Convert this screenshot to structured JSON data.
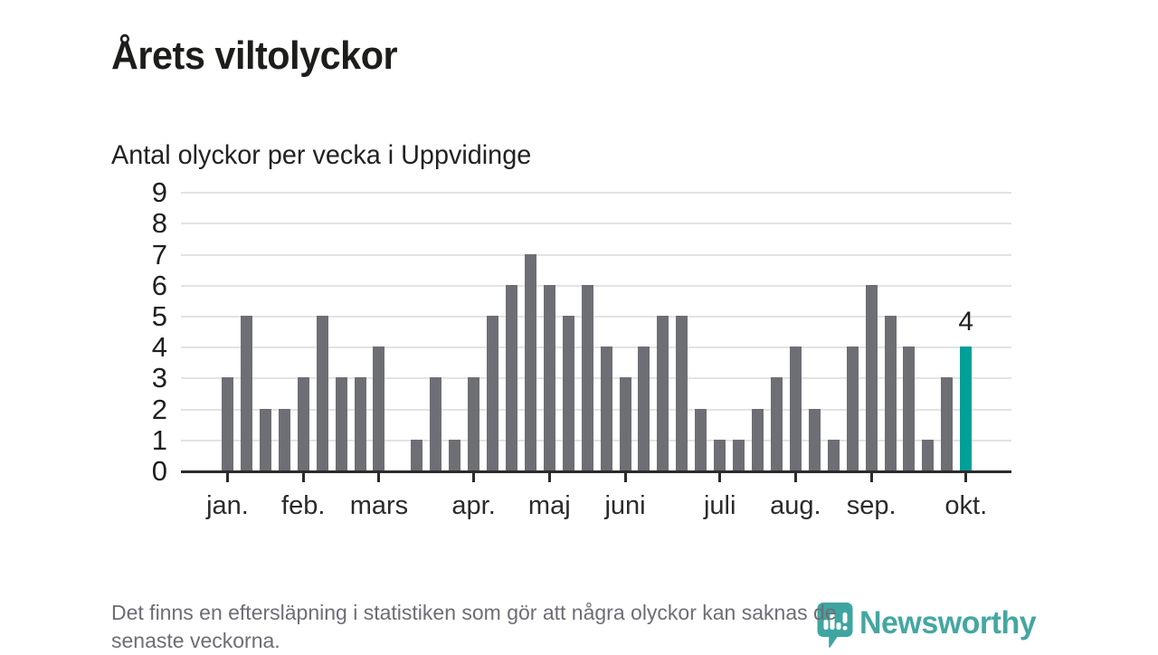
{
  "header": {
    "title": "Årets viltolyckor",
    "subtitle": "Antal olyckor per vecka i Uppvidinge"
  },
  "chart_data": {
    "type": "bar",
    "title": "Årets viltolyckor",
    "subtitle": "Antal olyckor per vecka i Uppvidinge",
    "x_unit": "vecka",
    "values": [
      3,
      5,
      2,
      2,
      3,
      5,
      3,
      3,
      4,
      0,
      1,
      3,
      1,
      3,
      5,
      6,
      7,
      6,
      5,
      6,
      4,
      3,
      4,
      5,
      5,
      2,
      1,
      1,
      2,
      3,
      4,
      2,
      1,
      4,
      6,
      5,
      4,
      1,
      3,
      4
    ],
    "highlight_index": 39,
    "highlight_value_label": "4",
    "months": [
      {
        "label": "jan.",
        "bar_index": 0
      },
      {
        "label": "feb.",
        "bar_index": 4
      },
      {
        "label": "mars",
        "bar_index": 8
      },
      {
        "label": "apr.",
        "bar_index": 13
      },
      {
        "label": "maj",
        "bar_index": 17
      },
      {
        "label": "juni",
        "bar_index": 21
      },
      {
        "label": "juli",
        "bar_index": 26
      },
      {
        "label": "aug.",
        "bar_index": 30
      },
      {
        "label": "sep.",
        "bar_index": 34
      },
      {
        "label": "okt.",
        "bar_index": 39
      }
    ],
    "ylim": [
      0,
      9
    ],
    "yticks": [
      0,
      1,
      2,
      3,
      4,
      5,
      6,
      7,
      8,
      9
    ],
    "grid": true,
    "legend": null,
    "colors": {
      "bar": "#6e6e75",
      "highlight": "#00a099",
      "grid": "#e3e3e3",
      "axis": "#2b2b2b"
    }
  },
  "footer": {
    "note_line1": "Det finns en eftersläpning i statistiken som gör att några olyckor kan saknas de",
    "note_line2": "senaste veckorna."
  },
  "logo": {
    "name": "Newsworthy",
    "color": "#44a7a2",
    "icon": "speech-bubble-bar-chart-icon"
  }
}
